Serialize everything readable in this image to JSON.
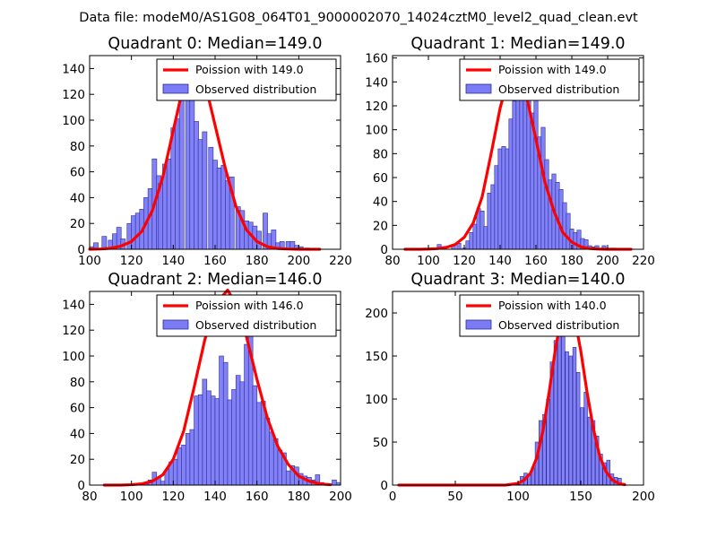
{
  "figure_title": "Data file: modeM0/AS1G08_064T01_9000002070_14024cztM0_level2_quad_clean.evt",
  "colors": {
    "bar_fill": "#7b7bf5",
    "bar_edge": "#2b2b9b",
    "poisson_line": "#ff0000"
  },
  "chart_data": [
    {
      "type": "bar",
      "title": "Quadrant 0: Median=149.0",
      "xlim": [
        100,
        220
      ],
      "ylim": [
        0,
        150
      ],
      "xticks": [
        100,
        120,
        140,
        160,
        180,
        200,
        220
      ],
      "yticks": [
        0,
        20,
        40,
        60,
        80,
        100,
        120,
        140
      ],
      "bar_width": 2.2,
      "legend": {
        "position": "top-right",
        "line_label": "Poission with 149.0",
        "bar_label": "Observed distribution"
      },
      "series": [
        {
          "name": "Observed distribution",
          "x": [
            101,
            103,
            107,
            110,
            112,
            114,
            116,
            119,
            121,
            123,
            125,
            127,
            129,
            131,
            133,
            134,
            136,
            138,
            140,
            142,
            144,
            147,
            149,
            151,
            153,
            155,
            158,
            160,
            162,
            164,
            166,
            168,
            171,
            173,
            175,
            177,
            179,
            181,
            184,
            186,
            188,
            190,
            192,
            195,
            197,
            199,
            201,
            204
          ],
          "y": [
            2,
            5,
            10,
            7,
            12,
            17,
            8,
            20,
            26,
            28,
            31,
            40,
            47,
            70,
            57,
            51,
            66,
            70,
            94,
            101,
            125,
            133,
            130,
            99,
            85,
            91,
            79,
            69,
            63,
            65,
            53,
            56,
            33,
            30,
            22,
            21,
            18,
            14,
            28,
            12,
            15,
            5,
            6,
            6,
            6,
            3,
            2,
            1
          ]
        },
        {
          "name": "Poission with 149.0",
          "x": [
            100,
            105,
            110,
            115,
            120,
            125,
            130,
            135,
            140,
            145,
            149,
            155,
            160,
            165,
            170,
            175,
            180,
            185,
            190,
            195,
            200,
            205,
            210
          ],
          "y": [
            0,
            0.2,
            0.8,
            2.5,
            6,
            14,
            30,
            56,
            92,
            128,
            146,
            130,
            96,
            62,
            33,
            15,
            6,
            2,
            0.6,
            0.2,
            0,
            0,
            0
          ]
        }
      ]
    },
    {
      "type": "bar",
      "title": "Quadrant 1: Median=149.0",
      "xlim": [
        80,
        220
      ],
      "ylim": [
        0,
        162
      ],
      "xticks": [
        80,
        100,
        120,
        140,
        160,
        180,
        200,
        220
      ],
      "yticks": [
        0,
        20,
        40,
        60,
        80,
        100,
        120,
        140,
        160
      ],
      "bar_width": 2.2,
      "legend": {
        "position": "top-right",
        "line_label": "Poission with 149.0",
        "bar_label": "Observed distribution"
      },
      "series": [
        {
          "name": "Observed distribution",
          "x": [
            106,
            108,
            114,
            117,
            120,
            122,
            124,
            126,
            128,
            130,
            132,
            134,
            136,
            138,
            140,
            142,
            144,
            146,
            148,
            150,
            152,
            154,
            156,
            158,
            160,
            162,
            164,
            166,
            168,
            170,
            172,
            174,
            176,
            178,
            180,
            182,
            184,
            186,
            188,
            190,
            192,
            194,
            196,
            198,
            200,
            203
          ],
          "y": [
            4,
            1,
            4,
            5,
            1,
            7,
            14,
            21,
            34,
            32,
            19,
            47,
            54,
            70,
            84,
            86,
            84,
            109,
            124,
            130,
            149,
            149,
            130,
            114,
            125,
            94,
            102,
            75,
            58,
            63,
            56,
            50,
            39,
            30,
            17,
            14,
            16,
            9,
            8,
            3,
            2,
            3,
            1,
            3,
            1,
            1
          ]
        },
        {
          "name": "Poission with 149.0",
          "x": [
            87,
            95,
            100,
            105,
            110,
            115,
            120,
            125,
            130,
            135,
            140,
            145,
            149,
            155,
            160,
            165,
            170,
            175,
            180,
            185,
            190,
            195,
            200,
            205,
            213
          ],
          "y": [
            0,
            0,
            0.2,
            0.6,
            1.6,
            4,
            10,
            22,
            44,
            80,
            118,
            146,
            146,
            126,
            92,
            56,
            32,
            14,
            6,
            2,
            0.6,
            0.2,
            0,
            0,
            0
          ]
        }
      ]
    },
    {
      "type": "bar",
      "title": "Quadrant 2: Median=146.0",
      "xlim": [
        80,
        200
      ],
      "ylim": [
        0,
        150
      ],
      "xticks": [
        80,
        100,
        120,
        140,
        160,
        180,
        200
      ],
      "yticks": [
        0,
        20,
        40,
        60,
        80,
        100,
        120,
        140
      ],
      "bar_width": 2.1,
      "legend": {
        "position": "top-right",
        "line_label": "Poission with 146.0",
        "bar_label": "Observed distribution"
      },
      "series": [
        {
          "name": "Observed distribution",
          "x": [
            104,
            107,
            109,
            111,
            113,
            115,
            117,
            119,
            121,
            123,
            125,
            127,
            129,
            131,
            133,
            135,
            137,
            139,
            141,
            143,
            145,
            147,
            149,
            151,
            153,
            155,
            157,
            159,
            161,
            163,
            165,
            167,
            169,
            171,
            173,
            175,
            177,
            179,
            181,
            183,
            185,
            187,
            189,
            191,
            193,
            195,
            197,
            199
          ],
          "y": [
            1,
            1,
            4,
            10,
            6,
            3,
            12,
            18,
            20,
            29,
            31,
            40,
            43,
            69,
            70,
            82,
            73,
            69,
            67,
            100,
            95,
            66,
            74,
            85,
            80,
            109,
            136,
            77,
            64,
            65,
            52,
            41,
            36,
            27,
            25,
            11,
            15,
            14,
            9,
            7,
            6,
            4,
            8,
            2,
            1,
            1,
            4,
            2
          ]
        },
        {
          "name": "Poission with 146.0",
          "x": [
            87,
            95,
            100,
            105,
            110,
            115,
            120,
            125,
            130,
            135,
            140,
            146,
            150,
            155,
            160,
            165,
            170,
            175,
            180,
            185,
            190,
            195
          ],
          "y": [
            0,
            0,
            0.3,
            1,
            3,
            8,
            20,
            42,
            76,
            112,
            140,
            151,
            140,
            115,
            82,
            52,
            30,
            16,
            7,
            3,
            1,
            0.3
          ]
        }
      ]
    },
    {
      "type": "bar",
      "title": "Quadrant 3: Median=140.0",
      "xlim": [
        0,
        200
      ],
      "ylim": [
        0,
        225
      ],
      "xticks": [
        0,
        50,
        100,
        150,
        200
      ],
      "yticks": [
        0,
        50,
        100,
        150,
        200
      ],
      "bar_width": 2.7,
      "legend": {
        "position": "top-right",
        "line_label": "Poission with 140.0",
        "bar_label": "Observed distribution"
      },
      "series": [
        {
          "name": "Observed distribution",
          "x": [
            28,
            52,
            70,
            94,
            100,
            103,
            106,
            109,
            112,
            115,
            118,
            121,
            124,
            127,
            130,
            133,
            136,
            139,
            142,
            145,
            148,
            151,
            154,
            157,
            160,
            163,
            166,
            169,
            172,
            175,
            178,
            181,
            184
          ],
          "y": [
            1,
            1,
            1,
            1,
            1,
            10,
            14,
            12,
            20,
            50,
            75,
            82,
            100,
            143,
            168,
            181,
            207,
            155,
            150,
            160,
            131,
            90,
            108,
            79,
            75,
            57,
            36,
            26,
            29,
            13,
            9,
            8,
            2
          ]
        },
        {
          "name": "Poission with 140.0",
          "x": [
            5,
            90,
            100,
            105,
            110,
            115,
            120,
            125,
            130,
            135,
            140,
            145,
            150,
            155,
            160,
            165,
            170,
            175,
            180,
            185
          ],
          "y": [
            0,
            0,
            2,
            6,
            14,
            32,
            64,
            110,
            160,
            198,
            212,
            195,
            156,
            108,
            66,
            34,
            16,
            6,
            2,
            0.5
          ]
        }
      ]
    }
  ]
}
